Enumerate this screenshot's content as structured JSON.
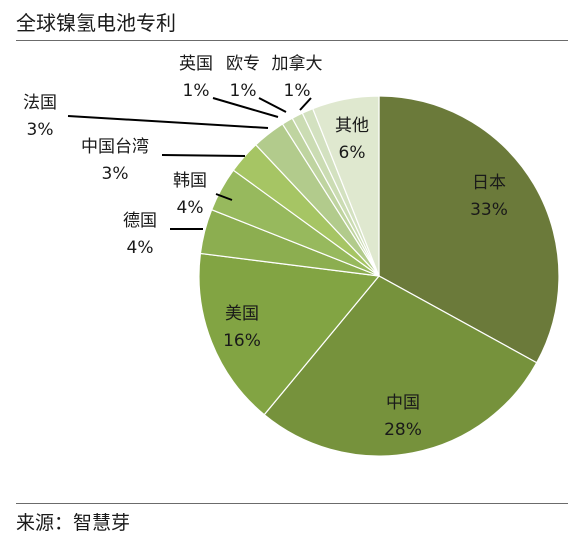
{
  "title": "全球镍氢电池专利",
  "source": "来源：智慧芽",
  "chart_data": {
    "type": "pie",
    "title": "全球镍氢电池专利",
    "unit": "%",
    "slices": [
      {
        "label": "日本",
        "value": 33,
        "value_label": "33%",
        "color": "#6b7a3a"
      },
      {
        "label": "中国",
        "value": 28,
        "value_label": "28%",
        "color": "#76923c"
      },
      {
        "label": "美国",
        "value": 16,
        "value_label": "16%",
        "color": "#82a443"
      },
      {
        "label": "德国",
        "value": 4,
        "value_label": "4%",
        "color": "#8cae50"
      },
      {
        "label": "韩国",
        "value": 4,
        "value_label": "4%",
        "color": "#97b95d"
      },
      {
        "label": "中国台湾",
        "value": 3,
        "value_label": "3%",
        "color": "#a6c564"
      },
      {
        "label": "法国",
        "value": 3,
        "value_label": "3%",
        "color": "#b2cb8c"
      },
      {
        "label": "英国",
        "value": 1,
        "value_label": "1%",
        "color": "#bfd4a0"
      },
      {
        "label": "欧专",
        "value": 1,
        "value_label": "1%",
        "color": "#cbdcb3"
      },
      {
        "label": "加拿大",
        "value": 1,
        "value_label": "1%",
        "color": "#d3e1c0"
      },
      {
        "label": "其他",
        "value": 6,
        "value_label": "6%",
        "color": "#dfe8cf"
      }
    ]
  }
}
